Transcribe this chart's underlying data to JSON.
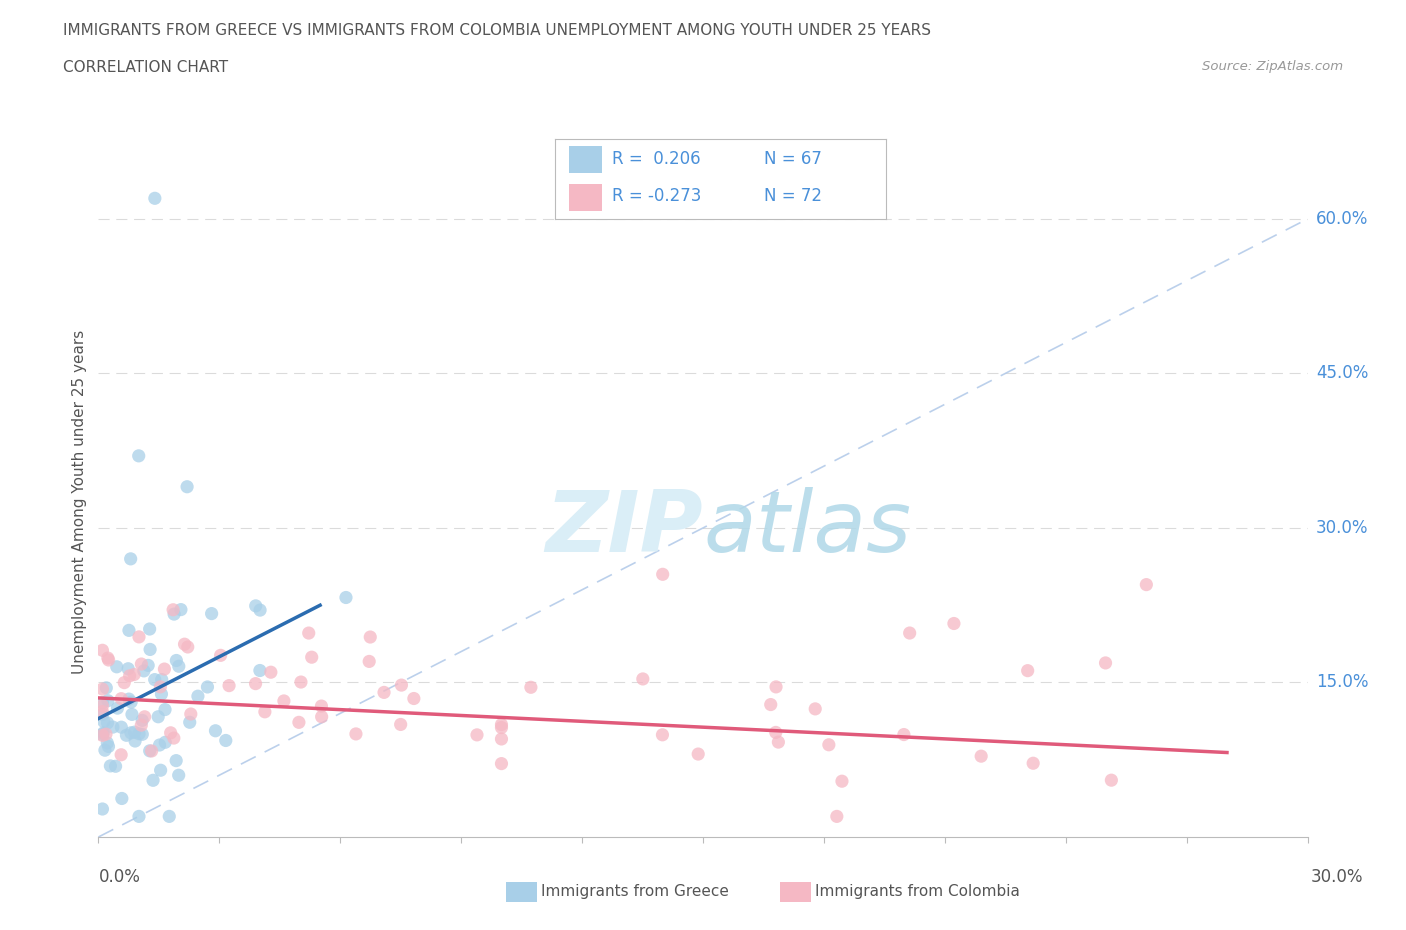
{
  "title": "IMMIGRANTS FROM GREECE VS IMMIGRANTS FROM COLOMBIA UNEMPLOYMENT AMONG YOUTH UNDER 25 YEARS",
  "subtitle": "CORRELATION CHART",
  "source": "Source: ZipAtlas.com",
  "ylabel": "Unemployment Among Youth under 25 years",
  "color_greece": "#a8cfe8",
  "color_colombia": "#f5b8c4",
  "color_trend_greece": "#2b6cb0",
  "color_trend_colombia": "#e05a7a",
  "color_ref_line": "#b0c8e8",
  "color_ytick_labels": "#4a90d9",
  "color_title": "#555555",
  "watermark_color": "#daeef7",
  "xlim": [
    0.0,
    0.3
  ],
  "ylim": [
    0.0,
    0.65
  ],
  "ytick_vals": [
    0.15,
    0.3,
    0.45,
    0.6
  ],
  "ytick_labels": [
    "15.0%",
    "30.0%",
    "45.0%",
    "60.0%"
  ]
}
